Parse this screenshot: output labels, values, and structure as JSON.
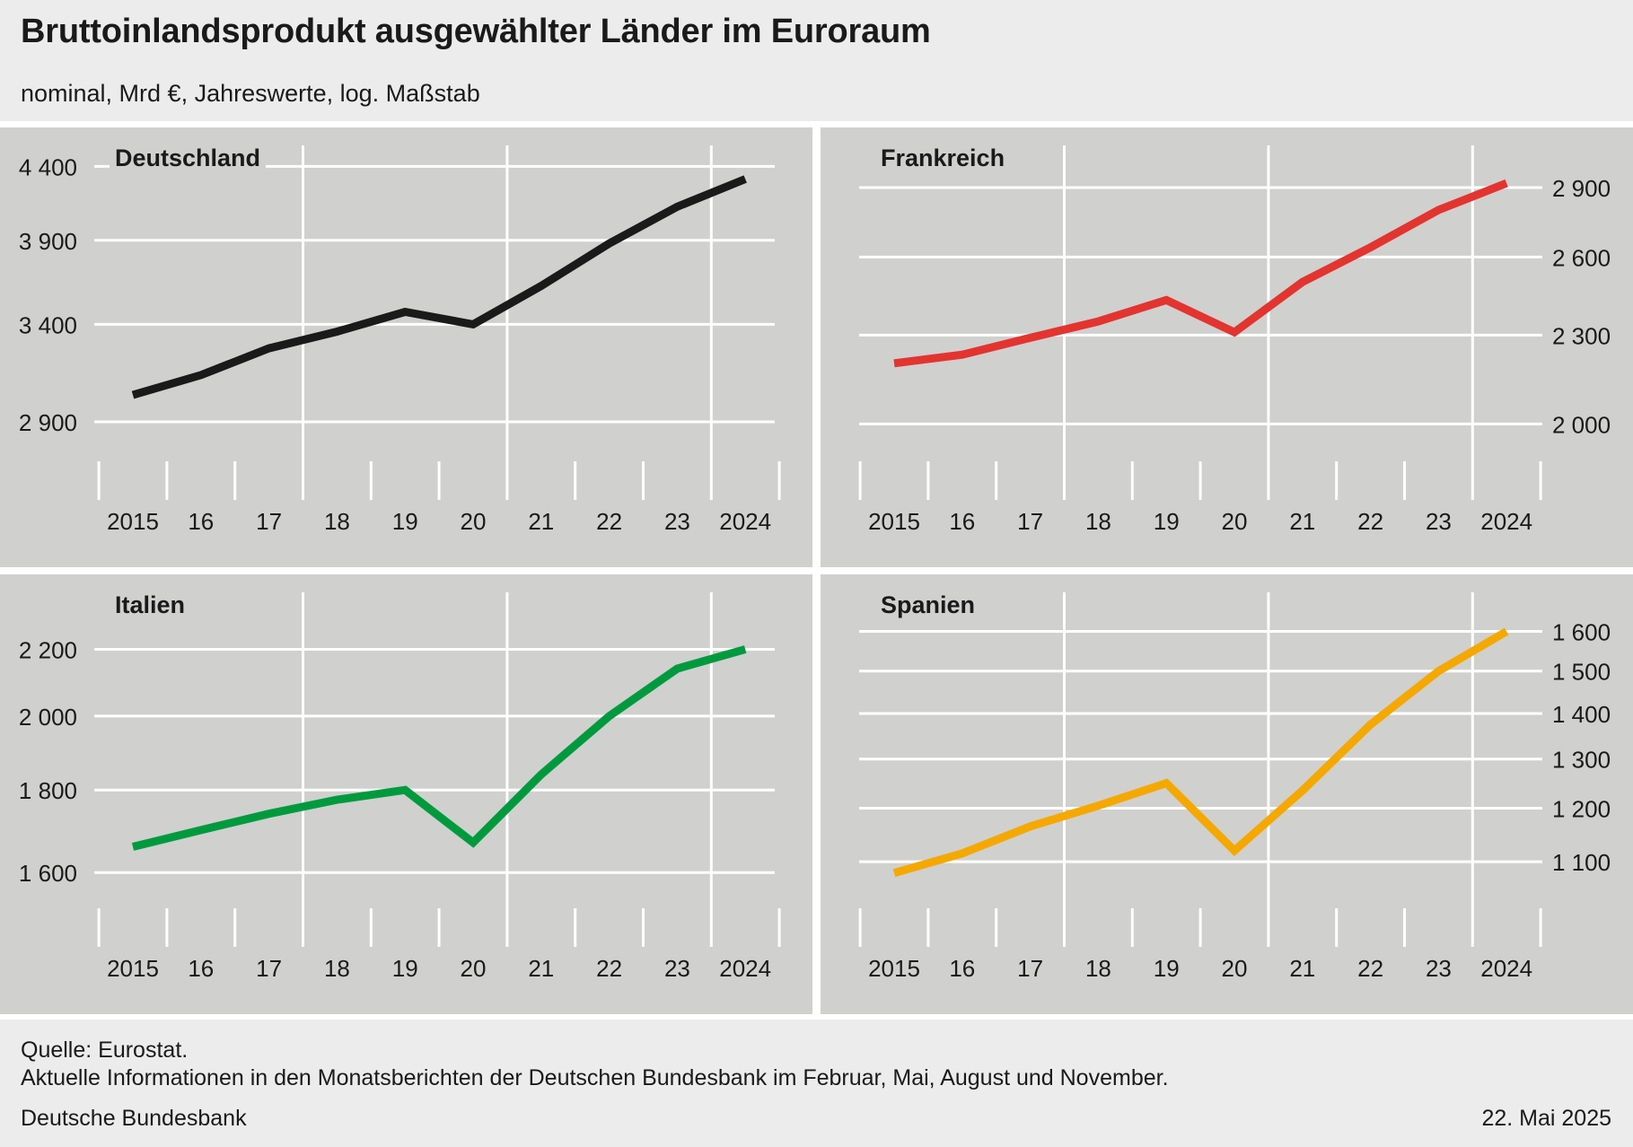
{
  "header": {
    "title": "Bruttoinlandsprodukt ausgewählter Länder im Euroraum",
    "subtitle": "nominal, Mrd €, Jahreswerte, log. Maßstab"
  },
  "footer": {
    "source": "Quelle: Eurostat.",
    "note": "Aktuelle Informationen in den Monatsberichten der Deutschen Bundesbank im Februar, Mai, August und November.",
    "publisher": "Deutsche Bundesbank",
    "date": "22. Mai 2025"
  },
  "chart_data": [
    {
      "type": "line",
      "title": "Deutschland",
      "x": [
        2015,
        2016,
        2017,
        2018,
        2019,
        2020,
        2021,
        2022,
        2023,
        2024
      ],
      "xtick_labels": [
        "2015",
        "16",
        "17",
        "18",
        "19",
        "20",
        "21",
        "22",
        "23",
        "2024"
      ],
      "values": [
        3030,
        3130,
        3270,
        3360,
        3470,
        3400,
        3620,
        3880,
        4120,
        4310
      ],
      "yscale": "log",
      "ylim": [
        2800,
        4540
      ],
      "yticks": [
        2900,
        3400,
        3900,
        4400
      ],
      "ytick_labels": [
        "2 900",
        "3 400",
        "3 900",
        "4 400"
      ],
      "yaxis_side": "left",
      "color": "#1a1a1a",
      "grid": true
    },
    {
      "type": "line",
      "title": "Frankreich",
      "x": [
        2015,
        2016,
        2017,
        2018,
        2019,
        2020,
        2021,
        2022,
        2023,
        2024
      ],
      "xtick_labels": [
        "2015",
        "16",
        "17",
        "18",
        "19",
        "20",
        "21",
        "22",
        "23",
        "2024"
      ],
      "values": [
        2200,
        2230,
        2290,
        2350,
        2430,
        2310,
        2500,
        2640,
        2800,
        2920
      ],
      "yscale": "log",
      "ylim": [
        1940,
        3090
      ],
      "yticks": [
        2000,
        2300,
        2600,
        2900
      ],
      "ytick_labels": [
        "2 000",
        "2 300",
        "2 600",
        "2 900"
      ],
      "yaxis_side": "right",
      "color": "#e3342f",
      "grid": true
    },
    {
      "type": "line",
      "title": "Italien",
      "x": [
        2015,
        2016,
        2017,
        2018,
        2019,
        2020,
        2021,
        2022,
        2023,
        2024
      ],
      "xtick_labels": [
        "2015",
        "16",
        "17",
        "18",
        "19",
        "20",
        "21",
        "22",
        "23",
        "2024"
      ],
      "values": [
        1660,
        1700,
        1740,
        1775,
        1800,
        1670,
        1840,
        2000,
        2140,
        2200
      ],
      "yscale": "log",
      "ylim": [
        1560,
        2380
      ],
      "yticks": [
        1600,
        1800,
        2000,
        2200
      ],
      "ytick_labels": [
        "1 600",
        "1 800",
        "2 000",
        "2 200"
      ],
      "yaxis_side": "left",
      "color": "#009a3e",
      "grid": true
    },
    {
      "type": "line",
      "title": "Spanien",
      "x": [
        2015,
        2016,
        2017,
        2018,
        2019,
        2020,
        2021,
        2022,
        2023,
        2024
      ],
      "xtick_labels": [
        "2015",
        "16",
        "17",
        "18",
        "19",
        "20",
        "21",
        "22",
        "23",
        "2024"
      ],
      "values": [
        1080,
        1115,
        1165,
        1205,
        1250,
        1120,
        1235,
        1375,
        1500,
        1600
      ],
      "yscale": "log",
      "ylim": [
        1050,
        1700
      ],
      "yticks": [
        1100,
        1200,
        1300,
        1400,
        1500,
        1600
      ],
      "ytick_labels": [
        "1 100",
        "1 200",
        "1 300",
        "1 400",
        "1 500",
        "1 600"
      ],
      "yaxis_side": "right",
      "color": "#f5a800",
      "grid": true
    }
  ]
}
